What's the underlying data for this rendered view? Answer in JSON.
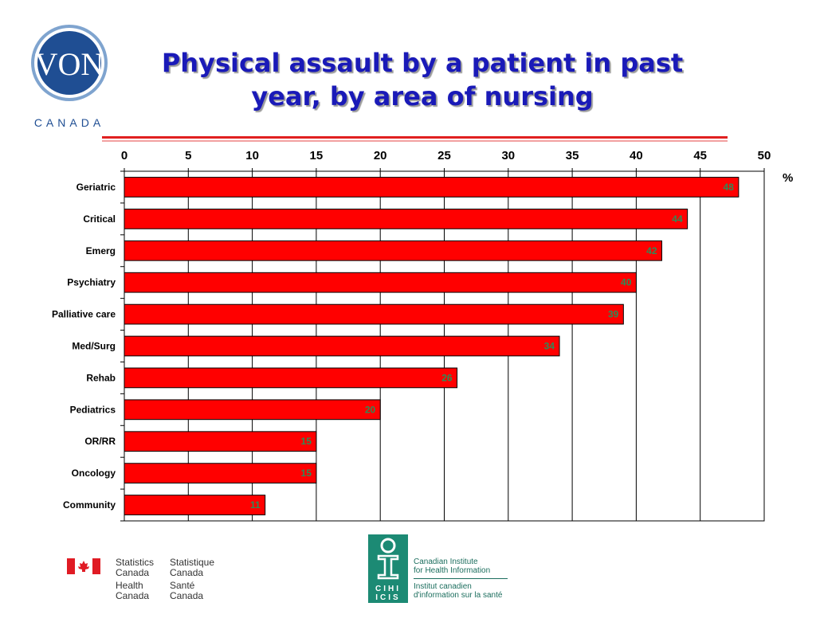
{
  "logo": {
    "von_text": "VON",
    "canada_text": "CANADA"
  },
  "slide": {
    "title": "Physical assault by a patient in past year, by area of nursing"
  },
  "chart_data": {
    "type": "bar",
    "orientation": "horizontal",
    "categories": [
      "Geriatric",
      "Critical",
      "Emerg",
      "Psychiatry",
      "Palliative care",
      "Med/Surg",
      "Rehab",
      "Pediatrics",
      "OR/RR",
      "Oncology",
      "Community"
    ],
    "values": [
      48,
      44,
      42,
      40,
      39,
      34,
      26,
      20,
      15,
      15,
      11
    ],
    "unit": "%",
    "xlim": [
      0,
      50
    ],
    "xticks": [
      0,
      5,
      10,
      15,
      20,
      25,
      30,
      35,
      40,
      45,
      50
    ],
    "x_axis_position": "top",
    "grid": true,
    "bar_color": "#ff0000",
    "data_label_color": "#2e8b57"
  },
  "footer": {
    "statcan_en": "Statistics\nCanada",
    "statcan_fr": "Statistique\nCanada",
    "health_en": "Health\nCanada",
    "health_fr": "Santé\nCanada",
    "cihi_letters_top": "CIHI",
    "cihi_letters_bottom": "ICIS",
    "cihi_en": "Canadian Institute\nfor Health Information",
    "cihi_fr": "Institut canadien\nd'information sur la santé"
  }
}
